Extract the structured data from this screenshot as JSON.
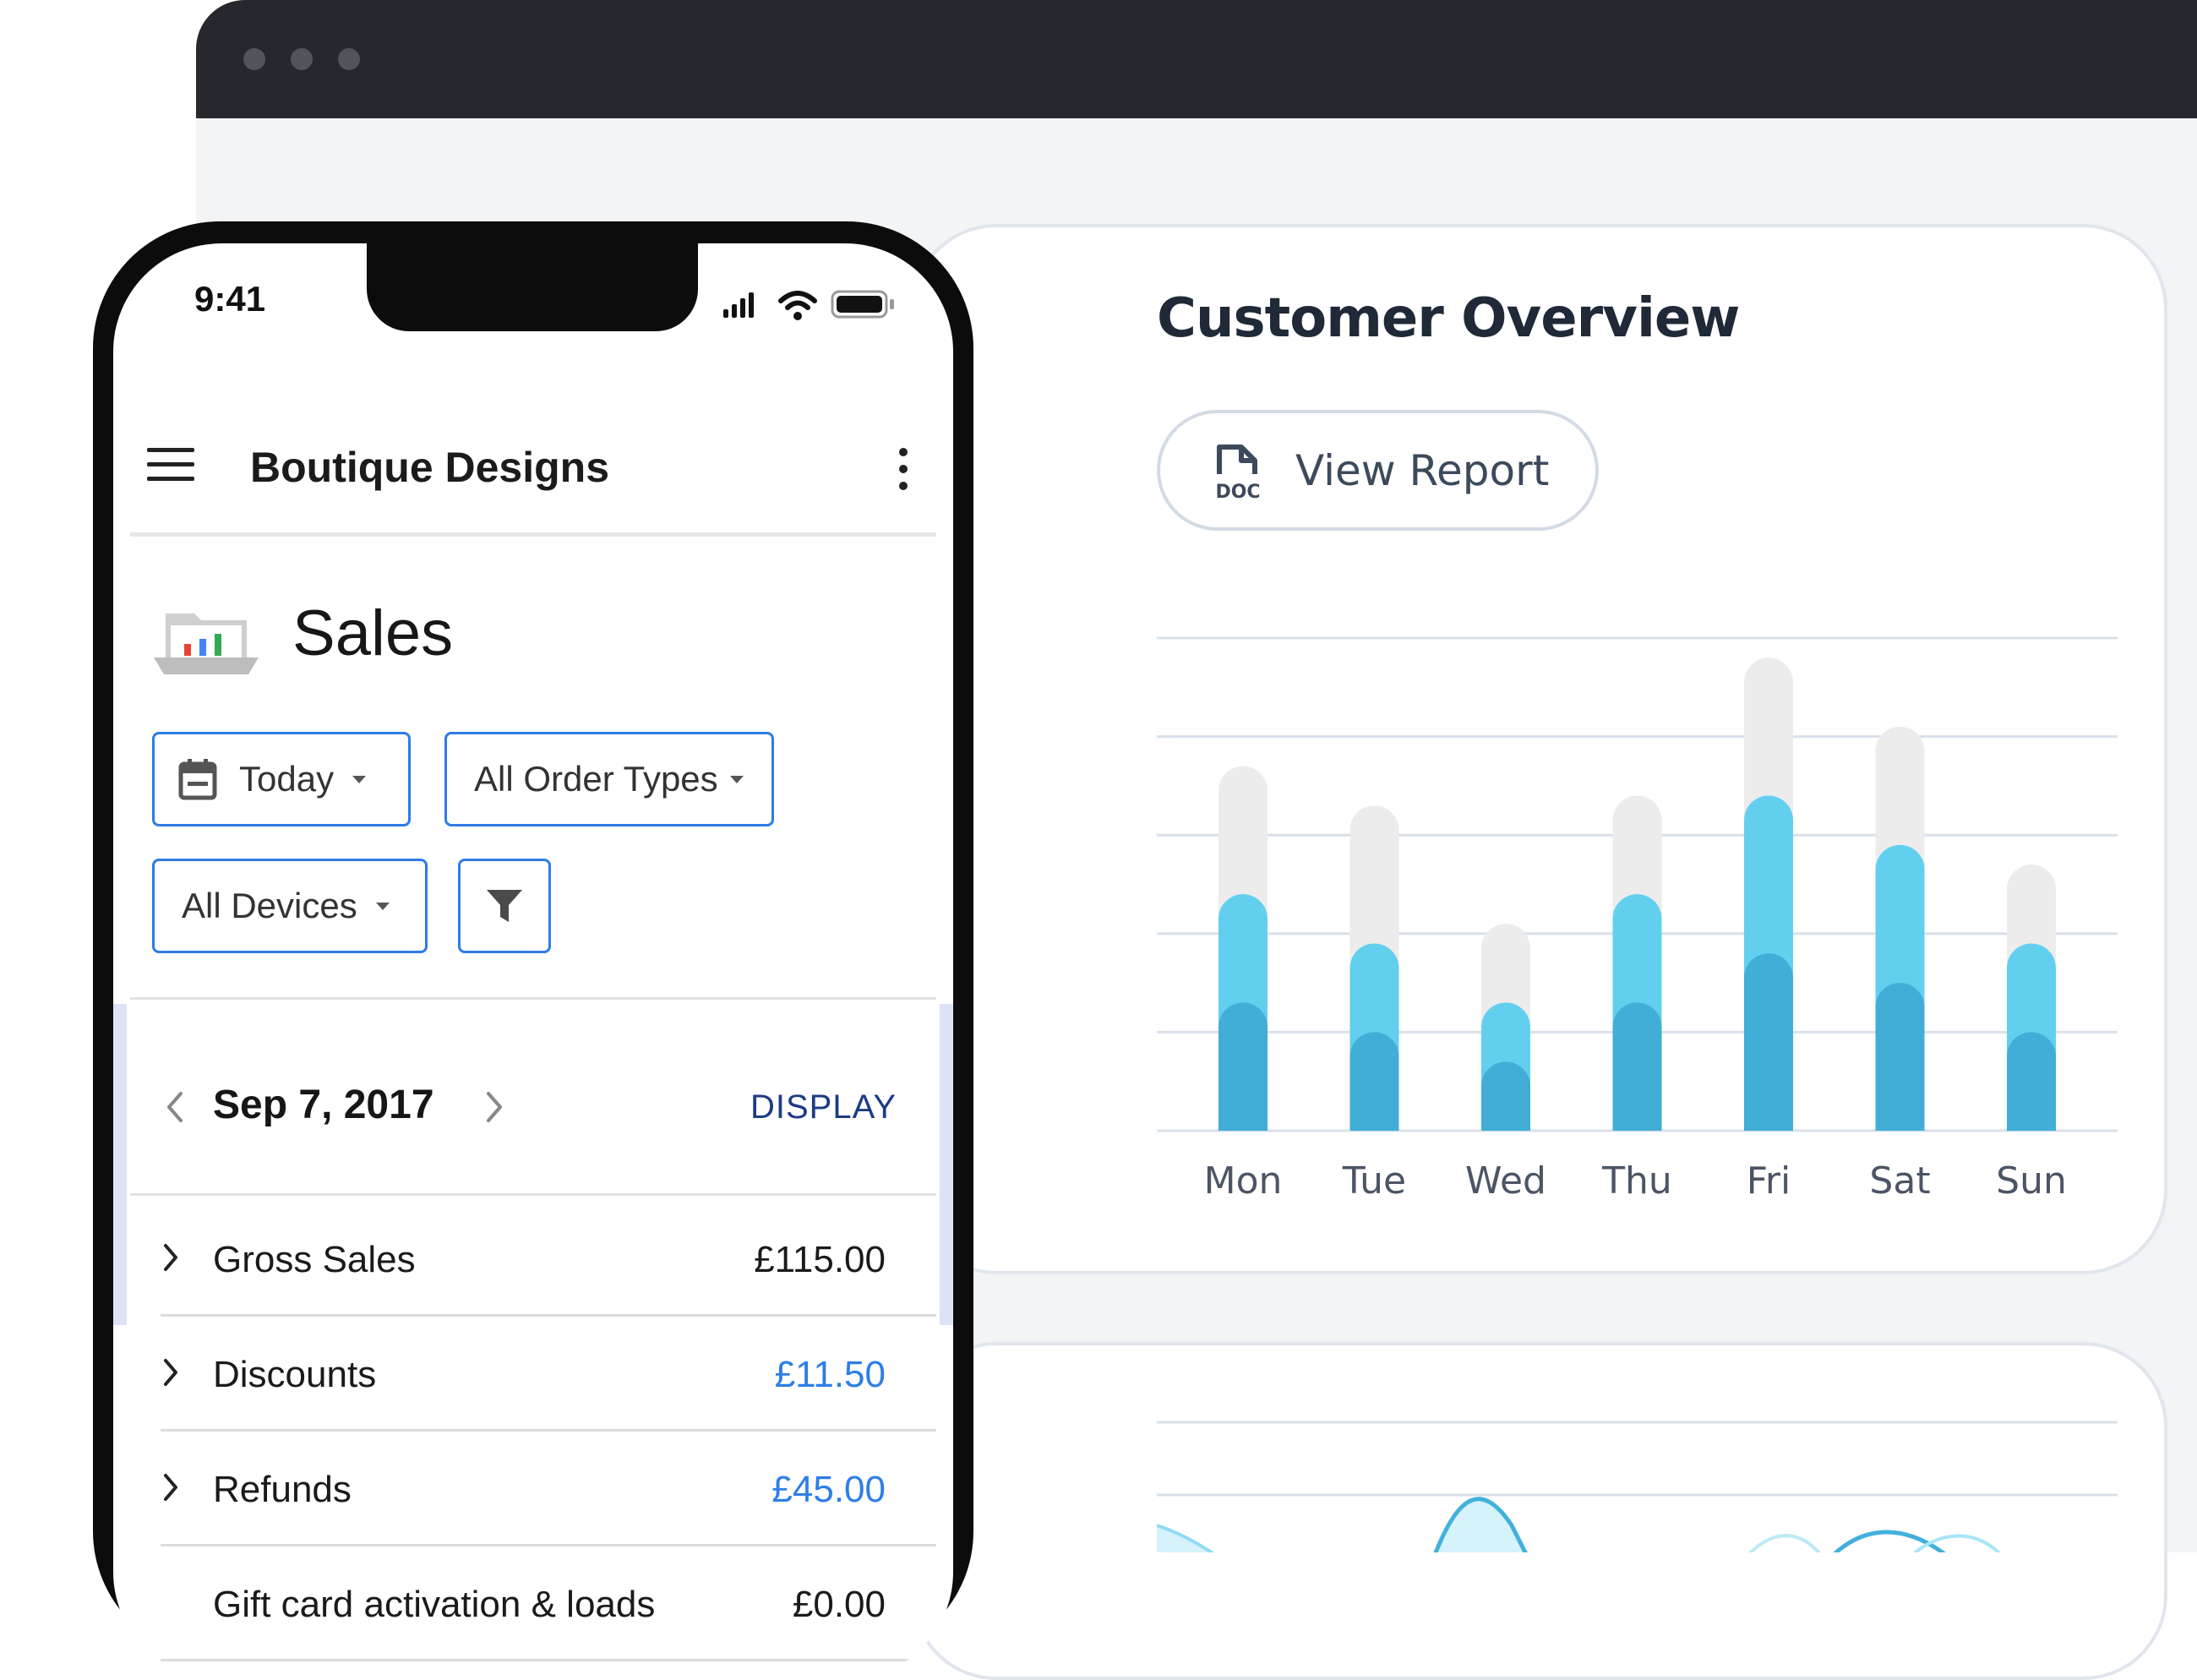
{
  "colors": {
    "page_bg": "#f3f4f6",
    "browser_bar": "#27282d",
    "accent_blue": "#2d7ee8",
    "bar_dark": "#40aed6",
    "bar_light": "#63cfee",
    "bar_track": "#ececec"
  },
  "phone": {
    "status_time": "9:41",
    "status_icons": [
      "signal-icon",
      "wifi-icon",
      "battery-icon"
    ],
    "app_title": "Boutique Designs",
    "page_title": "Sales",
    "filters": {
      "date": "Today",
      "order_types": "All Order Types",
      "devices": "All Devices"
    },
    "date_nav": {
      "date": "Sep 7, 2017",
      "display_label": "DISPLAY"
    },
    "rows": [
      {
        "label": "Gross Sales",
        "value": "£115.00",
        "expandable": true,
        "highlight": false
      },
      {
        "label": "Discounts",
        "value": "£11.50",
        "expandable": true,
        "highlight": true
      },
      {
        "label": "Refunds",
        "value": "£45.00",
        "expandable": true,
        "highlight": true
      },
      {
        "label": "Gift card activation & loads",
        "value": "£0.00",
        "expandable": false,
        "highlight": false
      }
    ]
  },
  "overview": {
    "title": "Customer Overview",
    "report_button": "View Report",
    "doc_icon_text": "DOC"
  },
  "chart_data": {
    "type": "bar",
    "stacked": true,
    "categories": [
      "Mon",
      "Tue",
      "Wed",
      "Thu",
      "Fri",
      "Sat",
      "Sun"
    ],
    "series": [
      {
        "values": [
          1.3,
          1.0,
          0.7,
          1.3,
          1.8,
          1.5,
          1.0
        ]
      },
      {
        "values": [
          1.1,
          0.9,
          0.6,
          1.1,
          1.6,
          1.4,
          0.9
        ]
      },
      {
        "values": [
          1.3,
          1.4,
          0.8,
          1.0,
          1.4,
          1.2,
          0.8
        ]
      }
    ],
    "ylim": [
      0,
      5
    ],
    "grid": true,
    "legend": "none"
  }
}
